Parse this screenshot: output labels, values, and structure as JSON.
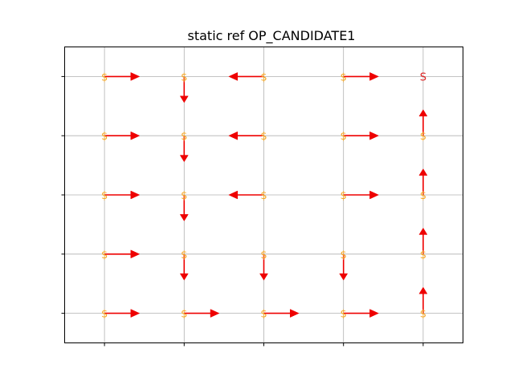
{
  "chart_data": {
    "type": "quiver",
    "title": "static ref OP_CANDIDATE1",
    "xlabel": "",
    "ylabel": "",
    "grid": true,
    "xlim": [
      -0.5,
      4.5
    ],
    "ylim": [
      -0.5,
      4.5
    ],
    "x": [
      0,
      1,
      2,
      3,
      4
    ],
    "y": [
      0,
      1,
      2,
      3,
      4
    ],
    "xticklabels": [
      "",
      "",
      "",
      "",
      ""
    ],
    "yticklabels": [
      "",
      "",
      "",
      "",
      ""
    ],
    "cell_marker": "$",
    "goal_marker": "S",
    "cells": [
      {
        "x": 0,
        "y": 4,
        "label": "$",
        "dir": "right"
      },
      {
        "x": 1,
        "y": 4,
        "label": "$",
        "dir": "down"
      },
      {
        "x": 2,
        "y": 4,
        "label": "$",
        "dir": "left"
      },
      {
        "x": 3,
        "y": 4,
        "label": "$",
        "dir": "right"
      },
      {
        "x": 4,
        "y": 4,
        "label": "S",
        "dir": "none"
      },
      {
        "x": 0,
        "y": 3,
        "label": "$",
        "dir": "right"
      },
      {
        "x": 1,
        "y": 3,
        "label": "$",
        "dir": "down"
      },
      {
        "x": 2,
        "y": 3,
        "label": "$",
        "dir": "left"
      },
      {
        "x": 3,
        "y": 3,
        "label": "$",
        "dir": "right"
      },
      {
        "x": 4,
        "y": 3,
        "label": "$",
        "dir": "up"
      },
      {
        "x": 0,
        "y": 2,
        "label": "$",
        "dir": "right"
      },
      {
        "x": 1,
        "y": 2,
        "label": "$",
        "dir": "down"
      },
      {
        "x": 2,
        "y": 2,
        "label": "$",
        "dir": "left"
      },
      {
        "x": 3,
        "y": 2,
        "label": "$",
        "dir": "right"
      },
      {
        "x": 4,
        "y": 2,
        "label": "$",
        "dir": "up"
      },
      {
        "x": 0,
        "y": 1,
        "label": "$",
        "dir": "right"
      },
      {
        "x": 1,
        "y": 1,
        "label": "$",
        "dir": "down"
      },
      {
        "x": 2,
        "y": 1,
        "label": "$",
        "dir": "down"
      },
      {
        "x": 3,
        "y": 1,
        "label": "$",
        "dir": "down"
      },
      {
        "x": 4,
        "y": 1,
        "label": "$",
        "dir": "up"
      },
      {
        "x": 0,
        "y": 0,
        "label": "$",
        "dir": "right"
      },
      {
        "x": 1,
        "y": 0,
        "label": "$",
        "dir": "right"
      },
      {
        "x": 2,
        "y": 0,
        "label": "$",
        "dir": "right"
      },
      {
        "x": 3,
        "y": 0,
        "label": "$",
        "dir": "right"
      },
      {
        "x": 4,
        "y": 0,
        "label": "$",
        "dir": "up"
      }
    ],
    "colors": {
      "arrow": "#ee0000",
      "cell_label": "#f5a623",
      "goal_label": "#dd2222",
      "grid": "#b0b0b0",
      "axes": "#000000"
    }
  }
}
